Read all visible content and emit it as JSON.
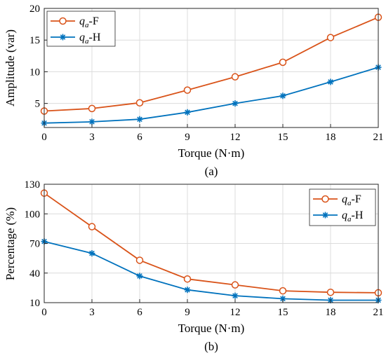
{
  "chart_data": [
    {
      "type": "line",
      "caption": "(a)",
      "x": [
        0,
        3,
        6,
        9,
        12,
        15,
        18,
        21
      ],
      "xticks": [
        0,
        3,
        6,
        9,
        12,
        15,
        18,
        21
      ],
      "xlim": [
        0,
        21
      ],
      "ylim": [
        1.2,
        20
      ],
      "yticks": [
        5,
        10,
        15,
        20
      ],
      "xlabel": "Torque (N·m)",
      "ylabel": "Amplitude (var)",
      "grid": true,
      "legend": "top-left",
      "series": [
        {
          "name": "qa-F",
          "color": "#D95319",
          "marker": "circle",
          "values": [
            3.8,
            4.2,
            5.1,
            7.1,
            9.2,
            11.5,
            15.4,
            18.6
          ]
        },
        {
          "name": "qa-H",
          "color": "#0072BD",
          "marker": "star",
          "values": [
            1.9,
            2.1,
            2.5,
            3.6,
            5.0,
            6.2,
            8.4,
            10.7
          ]
        }
      ]
    },
    {
      "type": "line",
      "caption": "(b)",
      "x": [
        0,
        3,
        6,
        9,
        12,
        15,
        18,
        21
      ],
      "xticks": [
        0,
        3,
        6,
        9,
        12,
        15,
        18,
        21
      ],
      "xlim": [
        0,
        21
      ],
      "ylim": [
        10,
        130
      ],
      "yticks": [
        10,
        40,
        70,
        100,
        130
      ],
      "xlabel": "Torque (N·m)",
      "ylabel": "Percentage (%)",
      "grid": true,
      "legend": "top-right",
      "series": [
        {
          "name": "qa-F",
          "color": "#D95319",
          "marker": "circle",
          "values": [
            121,
            87,
            53,
            34,
            28,
            22,
            20.5,
            20
          ]
        },
        {
          "name": "qa-H",
          "color": "#0072BD",
          "marker": "star",
          "values": [
            72,
            60,
            37,
            23,
            17,
            14,
            12.5,
            12.5
          ]
        }
      ]
    }
  ]
}
